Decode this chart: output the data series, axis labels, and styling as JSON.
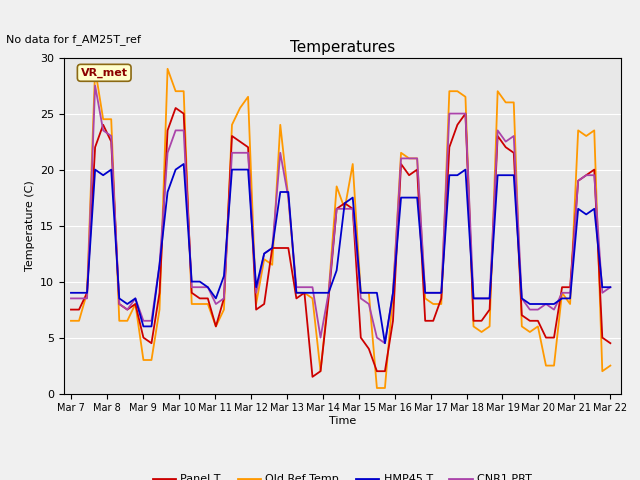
{
  "title": "Temperatures",
  "ylabel": "Temperature (C)",
  "xlabel": "Time",
  "annotation": "No data for f_AM25T_ref",
  "legend_label": "VR_met",
  "ylim": [
    0,
    30
  ],
  "yticks": [
    0,
    5,
    10,
    15,
    20,
    25,
    30
  ],
  "xtick_labels": [
    "Mar 7",
    "Mar 8",
    "Mar 9",
    "Mar 10",
    "Mar 11",
    "Mar 12",
    "Mar 13",
    "Mar 14",
    "Mar 15",
    "Mar 16",
    "Mar 17",
    "Mar 18",
    "Mar 19",
    "Mar 20",
    "Mar 21",
    "Mar 22"
  ],
  "series_colors": {
    "Panel T": "#cc0000",
    "Old Ref Temp": "#ff9900",
    "HMP45 T": "#0000cc",
    "CNR1 PRT": "#aa44aa"
  },
  "background_color": "#e8e8e8",
  "fig_background": "#f0f0f0",
  "grid_color": "#ffffff",
  "panel_T": [
    7.5,
    7.5,
    9.0,
    22.0,
    24.0,
    22.5,
    8.0,
    7.5,
    8.0,
    5.0,
    4.5,
    9.0,
    23.5,
    25.5,
    25.0,
    9.0,
    8.5,
    8.5,
    6.0,
    8.5,
    23.0,
    22.5,
    22.0,
    7.5,
    8.0,
    13.0,
    13.0,
    13.0,
    8.5,
    9.0,
    1.5,
    2.0,
    8.5,
    16.5,
    17.0,
    16.5,
    5.0,
    4.0,
    2.0,
    2.0,
    6.5,
    20.5,
    19.5,
    20.0,
    6.5,
    6.5,
    8.5,
    22.0,
    24.0,
    25.0,
    6.5,
    6.5,
    7.5,
    23.0,
    22.0,
    21.5,
    7.0,
    6.5,
    6.5,
    5.0,
    5.0,
    9.5,
    9.5,
    19.0,
    19.5,
    20.0,
    5.0,
    4.5
  ],
  "old_ref_T": [
    6.5,
    6.5,
    9.0,
    29.0,
    24.5,
    24.5,
    6.5,
    6.5,
    8.0,
    3.0,
    3.0,
    7.5,
    29.0,
    27.0,
    27.0,
    8.0,
    8.0,
    8.0,
    6.0,
    7.5,
    24.0,
    25.5,
    26.5,
    8.0,
    12.0,
    11.5,
    24.0,
    17.5,
    9.0,
    9.0,
    8.5,
    2.0,
    9.0,
    18.5,
    16.5,
    20.5,
    9.0,
    9.0,
    0.5,
    0.5,
    9.0,
    21.5,
    21.0,
    21.0,
    8.5,
    8.0,
    8.0,
    27.0,
    27.0,
    26.5,
    6.0,
    5.5,
    6.0,
    27.0,
    26.0,
    26.0,
    6.0,
    5.5,
    6.0,
    2.5,
    2.5,
    9.0,
    8.0,
    23.5,
    23.0,
    23.5,
    2.0,
    2.5
  ],
  "hmp45_T": [
    9.0,
    9.0,
    9.0,
    20.0,
    19.5,
    20.0,
    8.5,
    8.0,
    8.5,
    6.0,
    6.0,
    11.5,
    18.0,
    20.0,
    20.5,
    10.0,
    10.0,
    9.5,
    8.5,
    10.5,
    20.0,
    20.0,
    20.0,
    9.5,
    12.5,
    13.0,
    18.0,
    18.0,
    9.0,
    9.0,
    9.0,
    9.0,
    9.0,
    11.0,
    17.0,
    17.5,
    9.0,
    9.0,
    9.0,
    4.5,
    9.0,
    17.5,
    17.5,
    17.5,
    9.0,
    9.0,
    9.0,
    19.5,
    19.5,
    20.0,
    8.5,
    8.5,
    8.5,
    19.5,
    19.5,
    19.5,
    8.5,
    8.0,
    8.0,
    8.0,
    8.0,
    8.5,
    8.5,
    16.5,
    16.0,
    16.5,
    9.5,
    9.5
  ],
  "cnr1_T": [
    8.5,
    8.5,
    8.5,
    27.5,
    23.5,
    23.0,
    8.0,
    7.5,
    8.5,
    6.5,
    6.5,
    11.5,
    21.5,
    23.5,
    23.5,
    9.5,
    9.5,
    9.5,
    8.0,
    8.5,
    21.5,
    21.5,
    21.5,
    9.0,
    12.5,
    13.0,
    21.5,
    17.5,
    9.5,
    9.5,
    9.5,
    5.0,
    9.0,
    16.5,
    16.5,
    16.5,
    8.5,
    8.0,
    5.0,
    4.5,
    9.0,
    21.0,
    21.0,
    21.0,
    9.0,
    9.0,
    9.0,
    25.0,
    25.0,
    25.0,
    8.5,
    8.5,
    8.5,
    23.5,
    22.5,
    23.0,
    8.5,
    7.5,
    7.5,
    8.0,
    7.5,
    9.0,
    9.0,
    19.0,
    19.5,
    19.5,
    9.0,
    9.5
  ]
}
